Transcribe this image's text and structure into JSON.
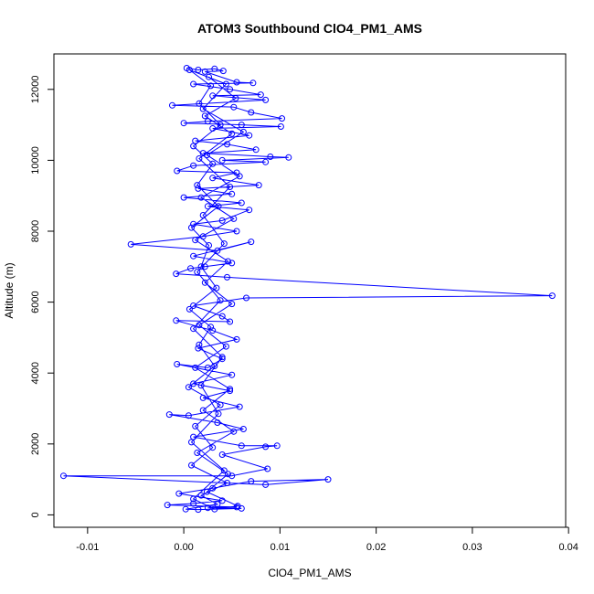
{
  "chart_data": {
    "type": "scatter",
    "title": "ATOM3 Southbound ClO4_PM1_AMS",
    "xlabel": "ClO4_PM1_AMS",
    "ylabel": "Altitude (m)",
    "xlim": [
      -0.0135,
      0.0397
    ],
    "ylim": [
      -350,
      13000
    ],
    "x_ticks": [
      -0.01,
      0.0,
      0.01,
      0.02,
      0.03,
      0.04
    ],
    "x_tick_labels": [
      "-0.01",
      "0.00",
      "0.01",
      "0.02",
      "0.03",
      "0.04"
    ],
    "y_ticks": [
      0,
      2000,
      4000,
      6000,
      8000,
      10000,
      12000
    ],
    "y_tick_labels": [
      "0",
      "2000",
      "4000",
      "6000",
      "8000",
      "10000",
      "12000"
    ],
    "grid": false,
    "legend": "none",
    "color": "#0000ff",
    "series": [
      {
        "marker": "open-circle",
        "connected": true,
        "points": [
          [
            0.0003,
            12600
          ],
          [
            0.0015,
            12550
          ],
          [
            0.0032,
            12580
          ],
          [
            0.0041,
            12520
          ],
          [
            0.0022,
            12500
          ],
          [
            0.0055,
            12200
          ],
          [
            0.0072,
            12180
          ],
          [
            0.001,
            12150
          ],
          [
            0.0048,
            12000
          ],
          [
            0.008,
            11850
          ],
          [
            0.003,
            11820
          ],
          [
            0.0085,
            11700
          ],
          [
            -0.0012,
            11550
          ],
          [
            0.0052,
            11500
          ],
          [
            0.007,
            11350
          ],
          [
            0.0102,
            11180
          ],
          [
            0.0025,
            11100
          ],
          [
            0.0,
            11050
          ],
          [
            0.006,
            11000
          ],
          [
            0.0101,
            10950
          ],
          [
            0.003,
            10900
          ],
          [
            0.0068,
            10700
          ],
          [
            0.0012,
            10550
          ],
          [
            0.0045,
            10450
          ],
          [
            0.0075,
            10300
          ],
          [
            0.002,
            10200
          ],
          [
            0.009,
            10100
          ],
          [
            0.0109,
            10080
          ],
          [
            0.004,
            10000
          ],
          [
            0.0085,
            9950
          ],
          [
            0.001,
            9850
          ],
          [
            -0.0007,
            9700
          ],
          [
            0.0055,
            9650
          ],
          [
            0.003,
            9500
          ],
          [
            0.0078,
            9300
          ],
          [
            0.0015,
            9200
          ],
          [
            0.005,
            9050
          ],
          [
            0.0,
            8950
          ],
          [
            0.006,
            8800
          ],
          [
            0.0025,
            8700
          ],
          [
            0.0068,
            8600
          ],
          [
            0.004,
            8300
          ],
          [
            0.001,
            8200
          ],
          [
            0.0055,
            8000
          ],
          [
            0.002,
            7850
          ],
          [
            -0.0055,
            7630
          ],
          [
            0.0035,
            7450
          ],
          [
            0.007,
            7700
          ],
          [
            0.001,
            7300
          ],
          [
            0.005,
            7100
          ],
          [
            0.0022,
            7000
          ],
          [
            0.0007,
            6950
          ],
          [
            -0.0008,
            6800
          ],
          [
            0.0045,
            6700
          ],
          [
            0.0383,
            6180
          ],
          [
            0.0065,
            6120
          ],
          [
            0.001,
            5900
          ],
          [
            0.004,
            5600
          ],
          [
            0.0048,
            5450
          ],
          [
            -0.0008,
            5480
          ],
          [
            0.003,
            5200
          ],
          [
            0.0055,
            4950
          ],
          [
            0.0015,
            4700
          ],
          [
            0.004,
            4400
          ],
          [
            0.0025,
            4150
          ],
          [
            -0.0007,
            4250
          ],
          [
            0.005,
            3950
          ],
          [
            0.001,
            3700
          ],
          [
            0.0048,
            3500
          ],
          [
            0.002,
            3300
          ],
          [
            0.0058,
            3050
          ],
          [
            0.0005,
            2800
          ],
          [
            -0.0015,
            2830
          ],
          [
            0.0035,
            2600
          ],
          [
            0.0062,
            2420
          ],
          [
            0.001,
            2200
          ],
          [
            0.006,
            1950
          ],
          [
            0.0097,
            1950
          ],
          [
            0.0085,
            1920
          ],
          [
            0.004,
            1700
          ],
          [
            0.0087,
            1300
          ],
          [
            0.005,
            1100
          ],
          [
            -0.0125,
            1100
          ],
          [
            0.0085,
            850
          ],
          [
            0.015,
            1000
          ],
          [
            0.007,
            950
          ],
          [
            0.003,
            750
          ],
          [
            -0.0005,
            600
          ],
          [
            0.004,
            400
          ],
          [
            0.001,
            320
          ],
          [
            -0.0017,
            280
          ],
          [
            0.0055,
            220
          ],
          [
            0.0025,
            200
          ],
          [
            0.006,
            180
          ],
          [
            0.0015,
            150
          ],
          [
            0.0002,
            160
          ],
          [
            0.0035,
            300
          ],
          [
            0.0018,
            550
          ],
          [
            0.0045,
            900
          ],
          [
            0.0008,
            1400
          ],
          [
            0.003,
            1900
          ],
          [
            0.0012,
            2500
          ],
          [
            0.0038,
            3100
          ],
          [
            0.0005,
            3600
          ],
          [
            0.0032,
            4200
          ],
          [
            0.0016,
            4800
          ],
          [
            0.0028,
            5300
          ],
          [
            0.0006,
            5800
          ],
          [
            0.0034,
            6400
          ],
          [
            0.0018,
            7000
          ],
          [
            0.0026,
            7600
          ],
          [
            0.0008,
            8100
          ],
          [
            0.0036,
            8700
          ],
          [
            0.0014,
            9300
          ],
          [
            0.003,
            9900
          ],
          [
            0.001,
            10400
          ],
          [
            0.0038,
            11000
          ],
          [
            0.0016,
            11600
          ],
          [
            0.0028,
            12100
          ],
          [
            0.0006,
            12550
          ],
          [
            0.0044,
            12150
          ],
          [
            0.002,
            11450
          ],
          [
            0.0062,
            10800
          ],
          [
            0.0024,
            10150
          ],
          [
            0.0058,
            9550
          ],
          [
            0.0018,
            8950
          ],
          [
            0.0052,
            8350
          ],
          [
            0.0012,
            7750
          ],
          [
            0.0046,
            7150
          ],
          [
            0.0022,
            6550
          ],
          [
            0.005,
            5950
          ],
          [
            0.0016,
            5350
          ],
          [
            0.0044,
            4750
          ],
          [
            0.0012,
            4150
          ],
          [
            0.0048,
            3550
          ],
          [
            0.002,
            2950
          ],
          [
            0.0052,
            2350
          ],
          [
            0.0014,
            1750
          ],
          [
            0.0046,
            1150
          ],
          [
            0.0024,
            650
          ],
          [
            0.0056,
            250
          ],
          [
            0.0032,
            160
          ],
          [
            0.001,
            450
          ],
          [
            0.0042,
            1250
          ],
          [
            0.0008,
            2050
          ],
          [
            0.0036,
            2850
          ],
          [
            0.0018,
            3650
          ],
          [
            0.004,
            4450
          ],
          [
            0.001,
            5250
          ],
          [
            0.0038,
            6050
          ],
          [
            0.0014,
            6850
          ],
          [
            0.0042,
            7650
          ],
          [
            0.002,
            8450
          ],
          [
            0.0048,
            9250
          ],
          [
            0.0016,
            10050
          ],
          [
            0.005,
            10750
          ],
          [
            0.0022,
            11250
          ],
          [
            0.0054,
            11750
          ],
          [
            0.0026,
            12350
          ]
        ]
      }
    ]
  }
}
